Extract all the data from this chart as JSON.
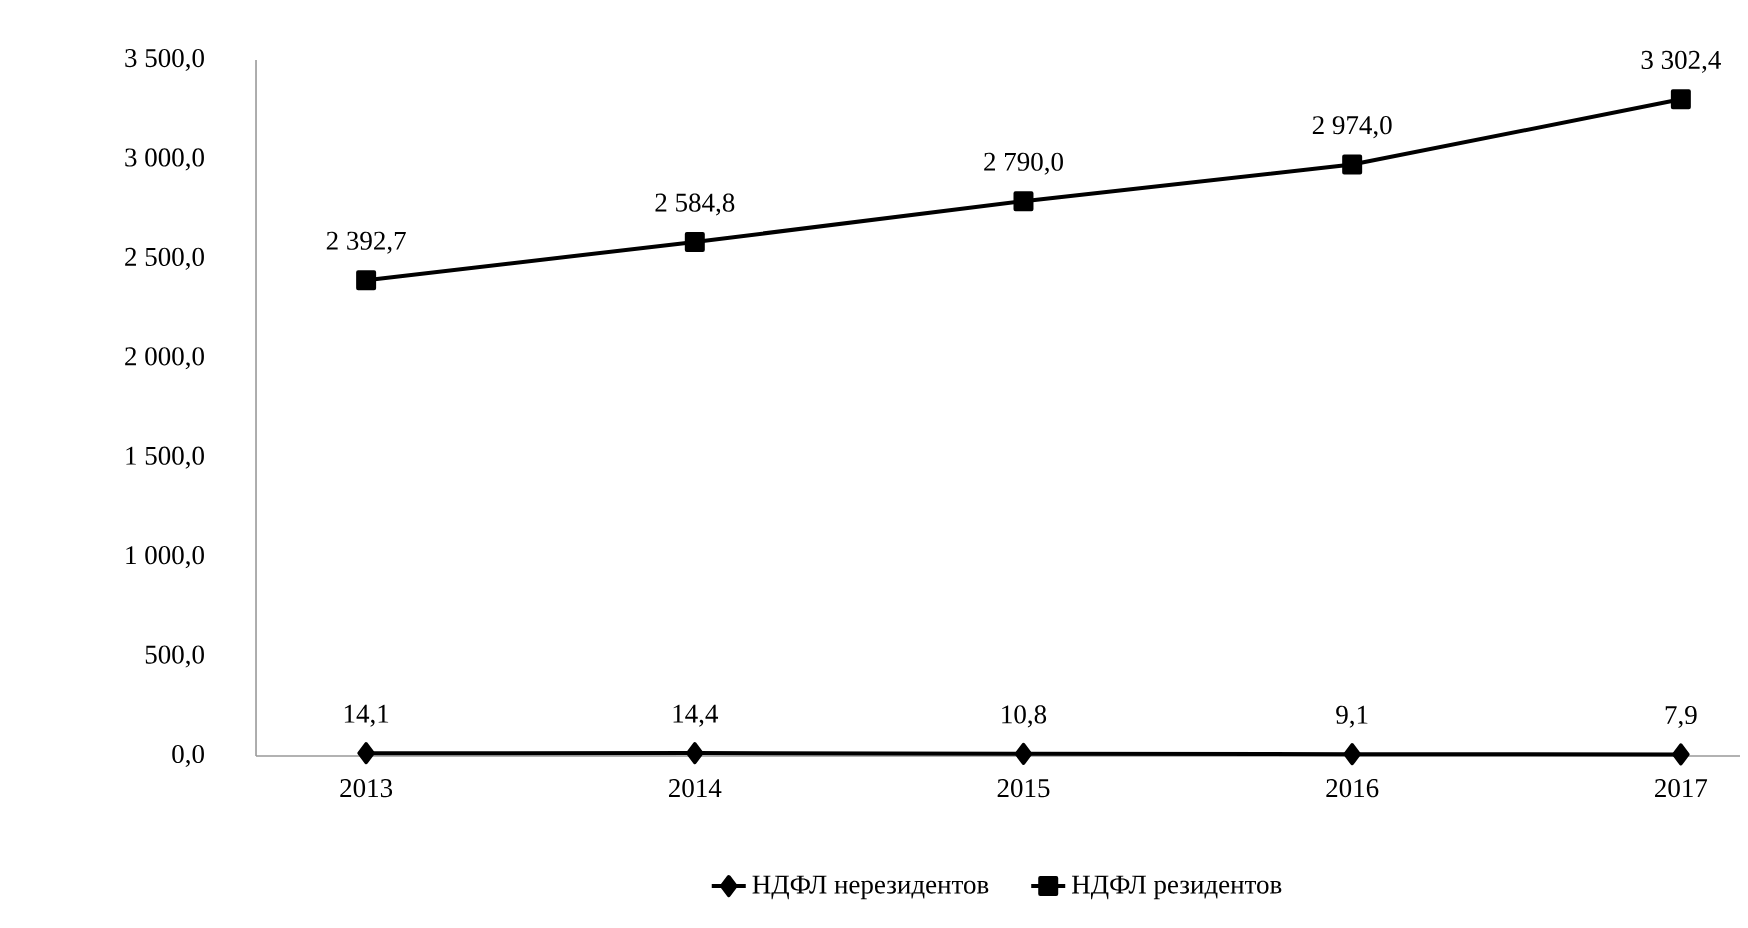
{
  "chart_data": {
    "type": "line",
    "categories": [
      "2013",
      "2014",
      "2015",
      "2016",
      "2017"
    ],
    "series": [
      {
        "name": "НДФЛ нерезидентов",
        "color": "#000000",
        "marker": "diamond",
        "values": [
          14.1,
          14.4,
          10.8,
          9.1,
          7.9
        ],
        "value_labels": [
          "14,1",
          "14,4",
          "10,8",
          "9,1",
          "7,9"
        ]
      },
      {
        "name": "НДФЛ резидентов",
        "color": "#000000",
        "marker": "square",
        "values": [
          2392.7,
          2584.8,
          2790.0,
          2974.0,
          3302.4
        ],
        "value_labels": [
          "2 392,7",
          "2 584,8",
          "2 790,0",
          "2 974,0",
          "3 302,4"
        ]
      }
    ],
    "ylim": [
      0,
      3500
    ],
    "yticks": [
      {
        "value": 0,
        "label": "0,0"
      },
      {
        "value": 500,
        "label": "500,0"
      },
      {
        "value": 1000,
        "label": "1 000,0"
      },
      {
        "value": 1500,
        "label": "1 500,0"
      },
      {
        "value": 2000,
        "label": "2 000,0"
      },
      {
        "value": 2500,
        "label": "2 500,0"
      },
      {
        "value": 3000,
        "label": "3 000,0"
      },
      {
        "value": 3500,
        "label": "3 500,0"
      }
    ],
    "legend": "bottom",
    "grid": false,
    "line_style": "solid"
  }
}
